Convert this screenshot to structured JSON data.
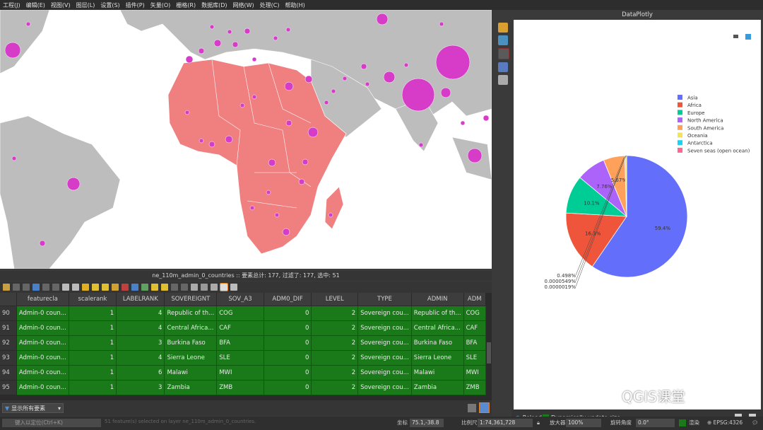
{
  "menubar": {
    "items": [
      "工程(J)",
      "编辑(E)",
      "视图(V)",
      "图层(L)",
      "设置(S)",
      "插件(P)",
      "矢量(O)",
      "栅格(R)",
      "数据库(D)",
      "网络(W)",
      "处理(C)",
      "帮助(H)"
    ]
  },
  "attribute_table": {
    "title": "ne_110m_admin_0_countries :: 要素总计: 177, 过滤了: 177, 选中: 51",
    "columns": [
      "featurecla",
      "scalerank",
      "LABELRANK",
      "SOVEREIGNT",
      "SOV_A3",
      "ADM0_DIF",
      "LEVEL",
      "TYPE",
      "ADMIN",
      "ADM"
    ],
    "rows": [
      {
        "n": "90",
        "cells": [
          "Admin-0 coun...",
          "1",
          "4",
          "Republic of th...",
          "COG",
          "0",
          "2",
          "Sovereign cou...",
          "Republic of th...",
          "COG"
        ]
      },
      {
        "n": "91",
        "cells": [
          "Admin-0 coun...",
          "1",
          "4",
          "Central Africa...",
          "CAF",
          "0",
          "2",
          "Sovereign cou...",
          "Central Africa...",
          "CAF"
        ]
      },
      {
        "n": "92",
        "cells": [
          "Admin-0 coun...",
          "1",
          "3",
          "Burkina Faso",
          "BFA",
          "0",
          "2",
          "Sovereign cou...",
          "Burkina Faso",
          "BFA"
        ]
      },
      {
        "n": "93",
        "cells": [
          "Admin-0 coun...",
          "1",
          "4",
          "Sierra Leone",
          "SLE",
          "0",
          "2",
          "Sovereign cou...",
          "Sierra Leone",
          "SLE"
        ]
      },
      {
        "n": "94",
        "cells": [
          "Admin-0 coun...",
          "1",
          "6",
          "Malawi",
          "MWI",
          "0",
          "2",
          "Sovereign cou...",
          "Malawi",
          "MWI"
        ]
      },
      {
        "n": "95",
        "cells": [
          "Admin-0 coun...",
          "1",
          "3",
          "Zambia",
          "ZMB",
          "0",
          "2",
          "Sovereign cou...",
          "Zambia",
          "ZMB"
        ]
      }
    ],
    "filter_label": "显示所有要素"
  },
  "status": {
    "locator_placeholder": "键入以定位(Ctrl+K)",
    "message": "51 feature(s) selected on layer ne_110m_admin_0_countries.",
    "coord_label": "坐标",
    "coord_value": "75.1,-38.8",
    "scale_label": "比例尺",
    "scale_value": "1:74,361,728",
    "mag_label": "放大器",
    "mag_value": "100%",
    "rot_label": "旋转角度",
    "rot_value": "0.0°",
    "render_label": "渲染",
    "epsg": "EPSG:4326"
  },
  "plotly": {
    "panel_title": "DataPlotly",
    "reload_label": "Reload",
    "dynamic_label": "Dynamically update size"
  },
  "chart_data": {
    "type": "pie",
    "title": "",
    "series": [
      {
        "name": "Asia",
        "value": 59.4,
        "label": "59.4%",
        "color": "#636efa"
      },
      {
        "name": "Africa",
        "value": 16.3,
        "label": "16.3%",
        "color": "#ef553b"
      },
      {
        "name": "Europe",
        "value": 10.1,
        "label": "10.1%",
        "color": "#00cc96"
      },
      {
        "name": "North America",
        "value": 7.76,
        "label": "7.76%",
        "color": "#ab63fa"
      },
      {
        "name": "South America",
        "value": 5.67,
        "label": "5.67%",
        "color": "#ffa15a"
      },
      {
        "name": "Oceania",
        "value": 0.498,
        "label": "0.498%",
        "color": "#f2e35c"
      },
      {
        "name": "Antarctica",
        "value": 5.49e-05,
        "label": "0.0000549%",
        "color": "#19d3f3"
      },
      {
        "name": "Seven seas (open ocean)",
        "value": 1.9e-06,
        "label": "0.0000019%",
        "color": "#ff6692"
      }
    ],
    "legend_position": "top-right"
  },
  "watermark": "QGIS课堂",
  "colors": {
    "africa_fill": "#f08080",
    "land_fill": "#bdbdbd",
    "circle_fill": "#d63cc8",
    "selected_row": "#1a7a1a"
  }
}
